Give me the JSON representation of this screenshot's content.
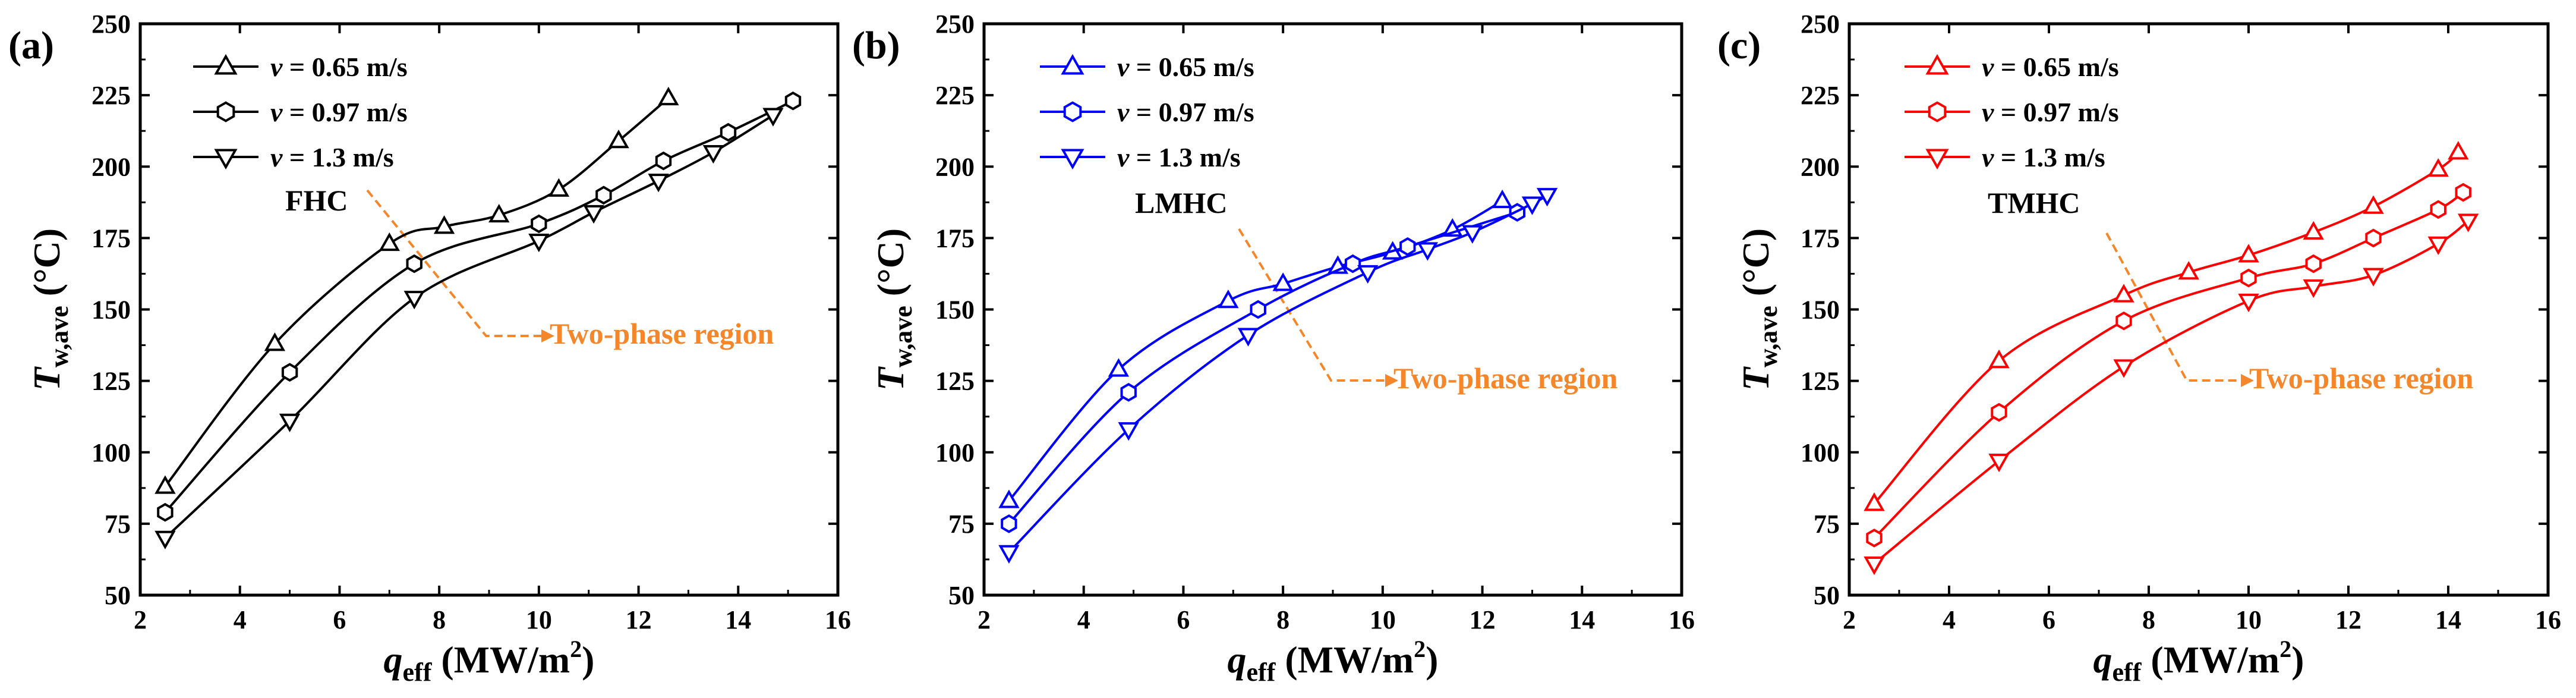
{
  "chart_data": [
    {
      "type": "line",
      "panel_label": "(a)",
      "color": "#000000",
      "annotation": "FHC",
      "region_label": "Two-phase region",
      "xlabel_main": "q",
      "xlabel_sub": "eff",
      "xlabel_unit": " (MW/m",
      "xlabel_sup": "2",
      "xlabel_close": ")",
      "ylabel_main": "T",
      "ylabel_sub": "w,ave",
      "ylabel_unit": " (°C)",
      "xlim": [
        2,
        16
      ],
      "ylim": [
        50,
        250
      ],
      "xticks": [
        "2",
        "4",
        "6",
        "8",
        "10",
        "12",
        "14",
        "16"
      ],
      "yticks": [
        "50",
        "75",
        "100",
        "125",
        "150",
        "175",
        "200",
        "225",
        "250"
      ],
      "grid": false,
      "legend": "top-left",
      "series": [
        {
          "name": "v = 0.65 m/s",
          "legend_var": "v",
          "legend_text": " = 0.65 m/s",
          "marker": "triangle-up",
          "x": [
            2.5,
            4.7,
            7.0,
            8.1,
            9.2,
            10.4,
            11.6,
            12.6
          ],
          "y": [
            88,
            138,
            173,
            179,
            183,
            192,
            209,
            224
          ]
        },
        {
          "name": "v = 0.97 m/s",
          "legend_var": "v",
          "legend_text": " = 0.97 m/s",
          "marker": "hexagon",
          "x": [
            2.5,
            5.0,
            7.5,
            10.0,
            11.3,
            12.5,
            13.8,
            15.1
          ],
          "y": [
            79,
            128,
            166,
            180,
            190,
            202,
            212,
            223
          ]
        },
        {
          "name": "v = 1.3 m/s",
          "legend_var": "v",
          "legend_text": " = 1.3 m/s",
          "marker": "triangle-down",
          "x": [
            2.5,
            5.0,
            7.5,
            10.0,
            11.1,
            12.4,
            13.5,
            14.7
          ],
          "y": [
            70,
            111,
            154,
            174,
            184,
            195,
            205,
            218
          ]
        }
      ]
    },
    {
      "type": "line",
      "panel_label": "(b)",
      "color": "#0000ff",
      "annotation": "LMHC",
      "region_label": "Two-phase region",
      "xlabel_main": "q",
      "xlabel_sub": "eff",
      "xlabel_unit": " (MW/m",
      "xlabel_sup": "2",
      "xlabel_close": ")",
      "ylabel_main": "T",
      "ylabel_sub": "w,ave",
      "ylabel_unit": " (°C)",
      "xlim": [
        2,
        16
      ],
      "ylim": [
        50,
        250
      ],
      "xticks": [
        "2",
        "4",
        "6",
        "8",
        "10",
        "12",
        "14",
        "16"
      ],
      "yticks": [
        "50",
        "75",
        "100",
        "125",
        "150",
        "175",
        "200",
        "225",
        "250"
      ],
      "grid": false,
      "legend": "top-left",
      "series": [
        {
          "name": "v = 0.65 m/s",
          "legend_var": "v",
          "legend_text": " = 0.65 m/s",
          "marker": "triangle-up",
          "x": [
            2.5,
            4.7,
            6.9,
            8.0,
            9.1,
            10.2,
            11.4,
            12.4
          ],
          "y": [
            83,
            129,
            153,
            159,
            165,
            170,
            178,
            188
          ]
        },
        {
          "name": "v = 0.97 m/s",
          "legend_var": "v",
          "legend_text": " = 0.97 m/s",
          "marker": "hexagon",
          "x": [
            2.5,
            4.9,
            7.5,
            9.4,
            10.5,
            12.7
          ],
          "y": [
            75,
            121,
            150,
            166,
            172,
            184
          ]
        },
        {
          "name": "v = 1.3 m/s",
          "legend_var": "v",
          "legend_text": " = 1.3 m/s",
          "marker": "triangle-down",
          "x": [
            2.5,
            4.9,
            7.3,
            9.7,
            10.9,
            11.8,
            13.0,
            13.3
          ],
          "y": [
            65,
            108,
            141,
            163,
            171,
            177,
            187,
            190
          ]
        }
      ]
    },
    {
      "type": "line",
      "panel_label": "(c)",
      "color": "#ff0000",
      "annotation": "TMHC",
      "region_label": "Two-phase region",
      "xlabel_main": "q",
      "xlabel_sub": "eff",
      "xlabel_unit": " (MW/m",
      "xlabel_sup": "2",
      "xlabel_close": ")",
      "ylabel_main": "T",
      "ylabel_sub": "w,ave",
      "ylabel_unit": " (°C)",
      "xlim": [
        2,
        16
      ],
      "ylim": [
        50,
        250
      ],
      "xticks": [
        "2",
        "4",
        "6",
        "8",
        "10",
        "12",
        "14",
        "16"
      ],
      "yticks": [
        "50",
        "75",
        "100",
        "125",
        "150",
        "175",
        "200",
        "225",
        "250"
      ],
      "grid": false,
      "legend": "top-left",
      "series": [
        {
          "name": "v = 0.65 m/s",
          "legend_var": "v",
          "legend_text": " = 0.65 m/s",
          "marker": "triangle-up",
          "x": [
            2.5,
            5.0,
            7.5,
            8.8,
            10.0,
            11.3,
            12.5,
            13.8,
            14.2
          ],
          "y": [
            82,
            132,
            155,
            163,
            169,
            177,
            186,
            199,
            205
          ]
        },
        {
          "name": "v = 0.97 m/s",
          "legend_var": "v",
          "legend_text": " = 0.97 m/s",
          "marker": "hexagon",
          "x": [
            2.5,
            5.0,
            7.5,
            10.0,
            11.3,
            12.5,
            13.8,
            14.3
          ],
          "y": [
            70,
            114,
            146,
            161,
            166,
            175,
            185,
            191
          ]
        },
        {
          "name": "v = 1.3 m/s",
          "legend_var": "v",
          "legend_text": " = 1.3 m/s",
          "marker": "triangle-down",
          "x": [
            2.5,
            5.0,
            7.5,
            10.0,
            11.3,
            12.5,
            13.8,
            14.4
          ],
          "y": [
            61,
            97,
            130,
            153,
            158,
            162,
            173,
            181
          ]
        }
      ]
    }
  ]
}
